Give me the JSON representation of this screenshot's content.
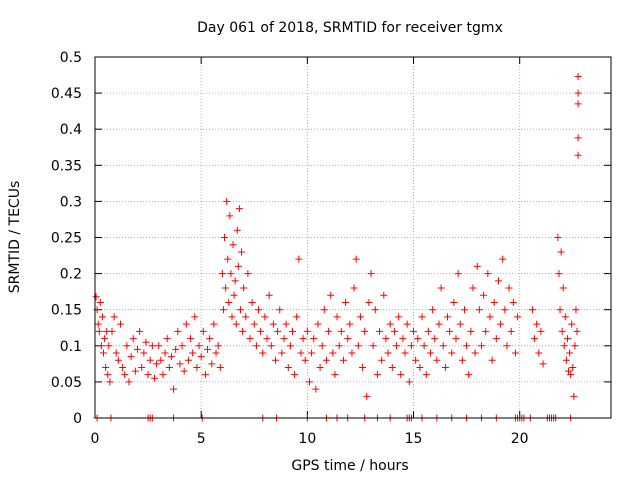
{
  "chart_data": {
    "type": "scatter",
    "title": "Day 061 of 2018, SRMTID for receiver tgmx",
    "xlabel": "GPS time / hours",
    "ylabel": "SRMTID / TECUs",
    "xlim": [
      0,
      24.3
    ],
    "ylim": [
      0,
      0.5
    ],
    "x_ticks": [
      "0",
      "5",
      "10",
      "15",
      "20"
    ],
    "x_tick_values": [
      0,
      5,
      10,
      15,
      20
    ],
    "y_ticks": [
      "0",
      "0.05",
      "0.1",
      "0.15",
      "0.2",
      "0.25",
      "0.3",
      "0.35",
      "0.4",
      "0.45",
      "0.5"
    ],
    "y_tick_values": [
      0,
      0.05,
      0.1,
      0.15,
      0.2,
      0.25,
      0.3,
      0.35,
      0.4,
      0.45,
      0.5
    ],
    "grid": true,
    "marker": "+",
    "marker_color": "#ff0000",
    "series": [
      {
        "name": "SRMTID",
        "points": [
          [
            0.05,
            0.168
          ],
          [
            0.1,
            0.15
          ],
          [
            0.15,
            0.13
          ],
          [
            0.2,
            0.12
          ],
          [
            0.25,
            0.16
          ],
          [
            0.3,
            0.1
          ],
          [
            0.35,
            0.14
          ],
          [
            0.4,
            0.09
          ],
          [
            0.45,
            0.11
          ],
          [
            0.5,
            0.07
          ],
          [
            0.55,
            0.12
          ],
          [
            0.6,
            0.06
          ],
          [
            0.65,
            0.1
          ],
          [
            0.7,
            0.05
          ],
          [
            0.8,
            0.12
          ],
          [
            0.9,
            0.14
          ],
          [
            1.0,
            0.09
          ],
          [
            1.1,
            0.08
          ],
          [
            1.2,
            0.13
          ],
          [
            1.3,
            0.07
          ],
          [
            1.4,
            0.06
          ],
          [
            1.5,
            0.1
          ],
          [
            1.6,
            0.05
          ],
          [
            1.7,
            0.085
          ],
          [
            1.8,
            0.11
          ],
          [
            1.9,
            0.065
          ],
          [
            2.0,
            0.095
          ],
          [
            2.1,
            0.12
          ],
          [
            2.2,
            0.07
          ],
          [
            2.3,
            0.09
          ],
          [
            2.4,
            0.105
          ],
          [
            2.5,
            0.06
          ],
          [
            2.6,
            0.08
          ],
          [
            2.7,
            0.1
          ],
          [
            2.8,
            0.055
          ],
          [
            2.9,
            0.075
          ],
          [
            3.0,
            0.1
          ],
          [
            3.1,
            0.08
          ],
          [
            3.2,
            0.06
          ],
          [
            3.3,
            0.09
          ],
          [
            3.4,
            0.11
          ],
          [
            3.5,
            0.07
          ],
          [
            3.6,
            0.085
          ],
          [
            3.7,
            0.04
          ],
          [
            3.8,
            0.095
          ],
          [
            3.9,
            0.12
          ],
          [
            4.0,
            0.075
          ],
          [
            4.1,
            0.1
          ],
          [
            4.2,
            0.065
          ],
          [
            4.3,
            0.13
          ],
          [
            4.4,
            0.08
          ],
          [
            4.5,
            0.11
          ],
          [
            4.6,
            0.09
          ],
          [
            4.7,
            0.14
          ],
          [
            4.8,
            0.07
          ],
          [
            4.9,
            0.1
          ],
          [
            5.0,
            0.085
          ],
          [
            5.1,
            0.12
          ],
          [
            5.2,
            0.06
          ],
          [
            5.3,
            0.095
          ],
          [
            5.4,
            0.11
          ],
          [
            5.5,
            0.075
          ],
          [
            5.6,
            0.13
          ],
          [
            5.7,
            0.09
          ],
          [
            5.8,
            0.1
          ],
          [
            5.9,
            0.07
          ],
          [
            6.0,
            0.2
          ],
          [
            6.05,
            0.15
          ],
          [
            6.1,
            0.25
          ],
          [
            6.15,
            0.18
          ],
          [
            6.2,
            0.3
          ],
          [
            6.25,
            0.22
          ],
          [
            6.3,
            0.16
          ],
          [
            6.35,
            0.28
          ],
          [
            6.4,
            0.2
          ],
          [
            6.45,
            0.14
          ],
          [
            6.5,
            0.24
          ],
          [
            6.55,
            0.17
          ],
          [
            6.6,
            0.19
          ],
          [
            6.65,
            0.13
          ],
          [
            6.7,
            0.26
          ],
          [
            6.75,
            0.21
          ],
          [
            6.8,
            0.29
          ],
          [
            6.85,
            0.15
          ],
          [
            6.9,
            0.23
          ],
          [
            6.95,
            0.12
          ],
          [
            7.0,
            0.18
          ],
          [
            7.1,
            0.14
          ],
          [
            7.2,
            0.2
          ],
          [
            7.3,
            0.11
          ],
          [
            7.4,
            0.16
          ],
          [
            7.5,
            0.13
          ],
          [
            7.6,
            0.1
          ],
          [
            7.7,
            0.15
          ],
          [
            7.8,
            0.12
          ],
          [
            7.9,
            0.09
          ],
          [
            8.0,
            0.14
          ],
          [
            8.1,
            0.11
          ],
          [
            8.2,
            0.17
          ],
          [
            8.3,
            0.1
          ],
          [
            8.4,
            0.13
          ],
          [
            8.5,
            0.08
          ],
          [
            8.6,
            0.12
          ],
          [
            8.7,
            0.15
          ],
          [
            8.8,
            0.09
          ],
          [
            8.9,
            0.11
          ],
          [
            9.0,
            0.13
          ],
          [
            9.1,
            0.07
          ],
          [
            9.2,
            0.1
          ],
          [
            9.3,
            0.12
          ],
          [
            9.4,
            0.06
          ],
          [
            9.5,
            0.14
          ],
          [
            9.6,
            0.22
          ],
          [
            9.7,
            0.09
          ],
          [
            9.8,
            0.11
          ],
          [
            9.9,
            0.08
          ],
          [
            10.0,
            0.12
          ],
          [
            10.1,
            0.05
          ],
          [
            10.2,
            0.09
          ],
          [
            10.3,
            0.11
          ],
          [
            10.4,
            0.04
          ],
          [
            10.5,
            0.13
          ],
          [
            10.6,
            0.07
          ],
          [
            10.7,
            0.1
          ],
          [
            10.8,
            0.15
          ],
          [
            10.9,
            0.08
          ],
          [
            11.0,
            0.12
          ],
          [
            11.1,
            0.17
          ],
          [
            11.2,
            0.09
          ],
          [
            11.3,
            0.06
          ],
          [
            11.4,
            0.14
          ],
          [
            11.5,
            0.1
          ],
          [
            11.6,
            0.12
          ],
          [
            11.7,
            0.08
          ],
          [
            11.8,
            0.16
          ],
          [
            11.9,
            0.11
          ],
          [
            12.0,
            0.13
          ],
          [
            12.1,
            0.09
          ],
          [
            12.2,
            0.18
          ],
          [
            12.3,
            0.22
          ],
          [
            12.4,
            0.1
          ],
          [
            12.5,
            0.14
          ],
          [
            12.6,
            0.07
          ],
          [
            12.7,
            0.12
          ],
          [
            12.8,
            0.03
          ],
          [
            12.9,
            0.16
          ],
          [
            13.0,
            0.2
          ],
          [
            13.1,
            0.1
          ],
          [
            13.2,
            0.15
          ],
          [
            13.3,
            0.06
          ],
          [
            13.4,
            0.12
          ],
          [
            13.5,
            0.08
          ],
          [
            13.6,
            0.17
          ],
          [
            13.7,
            0.11
          ],
          [
            13.8,
            0.09
          ],
          [
            13.9,
            0.13
          ],
          [
            14.0,
            0.07
          ],
          [
            14.1,
            0.12
          ],
          [
            14.2,
            0.1
          ],
          [
            14.3,
            0.14
          ],
          [
            14.4,
            0.06
          ],
          [
            14.5,
            0.11
          ],
          [
            14.6,
            0.09
          ],
          [
            14.7,
            0.13
          ],
          [
            14.8,
            0.05
          ],
          [
            14.9,
            0.1
          ],
          [
            15.0,
            0.12
          ],
          [
            15.1,
            0.08
          ],
          [
            15.2,
            0.11
          ],
          [
            15.3,
            0.07
          ],
          [
            15.4,
            0.14
          ],
          [
            15.5,
            0.1
          ],
          [
            15.6,
            0.06
          ],
          [
            15.7,
            0.12
          ],
          [
            15.8,
            0.09
          ],
          [
            15.9,
            0.15
          ],
          [
            16.0,
            0.11
          ],
          [
            16.1,
            0.08
          ],
          [
            16.2,
            0.13
          ],
          [
            16.3,
            0.18
          ],
          [
            16.4,
            0.1
          ],
          [
            16.5,
            0.07
          ],
          [
            16.6,
            0.14
          ],
          [
            16.7,
            0.12
          ],
          [
            16.8,
            0.09
          ],
          [
            16.9,
            0.16
          ],
          [
            17.0,
            0.11
          ],
          [
            17.1,
            0.2
          ],
          [
            17.2,
            0.13
          ],
          [
            17.3,
            0.08
          ],
          [
            17.4,
            0.15
          ],
          [
            17.5,
            0.1
          ],
          [
            17.6,
            0.06
          ],
          [
            17.7,
            0.12
          ],
          [
            17.8,
            0.18
          ],
          [
            17.9,
            0.09
          ],
          [
            18.0,
            0.21
          ],
          [
            18.1,
            0.15
          ],
          [
            18.2,
            0.1
          ],
          [
            18.3,
            0.17
          ],
          [
            18.4,
            0.12
          ],
          [
            18.5,
            0.2
          ],
          [
            18.6,
            0.14
          ],
          [
            18.7,
            0.08
          ],
          [
            18.8,
            0.16
          ],
          [
            18.9,
            0.11
          ],
          [
            19.0,
            0.19
          ],
          [
            19.1,
            0.13
          ],
          [
            19.2,
            0.22
          ],
          [
            19.3,
            0.15
          ],
          [
            19.4,
            0.1
          ],
          [
            19.5,
            0.18
          ],
          [
            19.6,
            0.12
          ],
          [
            19.7,
            0.16
          ],
          [
            19.8,
            0.09
          ],
          [
            19.9,
            0.14
          ],
          [
            20.6,
            0.15
          ],
          [
            20.7,
            0.11
          ],
          [
            20.8,
            0.13
          ],
          [
            20.9,
            0.09
          ],
          [
            21.0,
            0.12
          ],
          [
            21.1,
            0.075
          ],
          [
            21.8,
            0.25
          ],
          [
            21.85,
            0.2
          ],
          [
            21.9,
            0.15
          ],
          [
            21.95,
            0.23
          ],
          [
            22.0,
            0.12
          ],
          [
            22.05,
            0.18
          ],
          [
            22.1,
            0.1
          ],
          [
            22.15,
            0.14
          ],
          [
            22.2,
            0.08
          ],
          [
            22.25,
            0.11
          ],
          [
            22.3,
            0.065
          ],
          [
            22.35,
            0.09
          ],
          [
            22.4,
            0.06
          ],
          [
            22.45,
            0.13
          ],
          [
            22.5,
            0.07
          ],
          [
            22.55,
            0.03
          ],
          [
            22.6,
            0.1
          ],
          [
            22.65,
            0.15
          ],
          [
            22.7,
            0.12
          ],
          [
            22.75,
            0.473
          ],
          [
            22.75,
            0.45
          ],
          [
            22.75,
            0.435
          ],
          [
            22.75,
            0.388
          ],
          [
            22.75,
            0.364
          ]
        ],
        "zero_points": [
          0.1,
          0.75,
          2.5,
          2.6,
          2.7,
          3.7,
          5.05,
          7.9,
          8.55,
          10.0,
          10.9,
          11.4,
          11.9,
          12.7,
          13.3,
          13.9,
          14.7,
          14.8,
          14.9,
          15.4,
          16.1,
          16.8,
          17.5,
          18.2,
          18.9,
          19.8,
          19.9,
          20.0,
          20.1,
          20.2,
          20.5,
          21.3,
          21.4,
          21.5,
          21.6,
          21.7,
          22.4
        ]
      }
    ]
  }
}
